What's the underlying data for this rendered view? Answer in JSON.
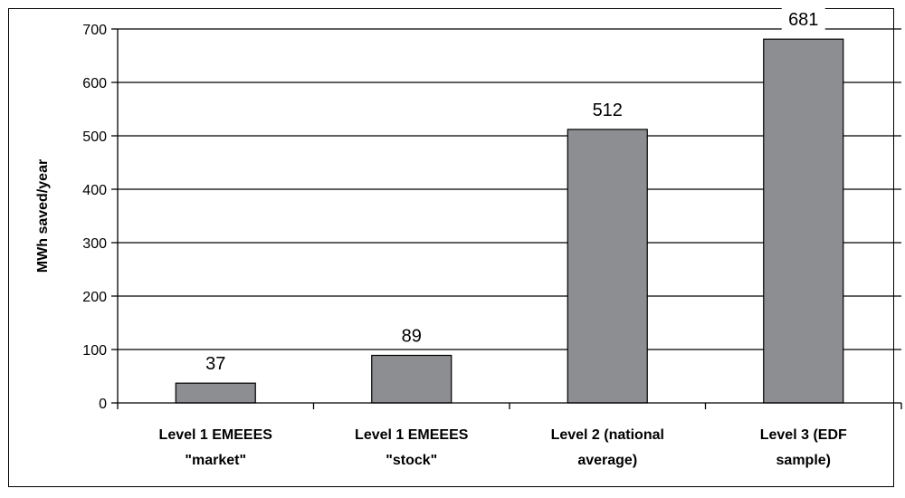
{
  "chart_data": {
    "type": "bar",
    "title": "",
    "xlabel": "",
    "ylabel": "MWh saved/year",
    "ylim": [
      0,
      700
    ],
    "yticks": [
      0,
      100,
      200,
      300,
      400,
      500,
      600,
      700
    ],
    "grid": true,
    "legend": "none",
    "categories": [
      [
        "Level 1 EMEEES",
        "\"market\""
      ],
      [
        "Level 1 EMEEES",
        "\"stock\""
      ],
      [
        "Level 2 (national",
        "average)"
      ],
      [
        "Level 3 (EDF",
        "sample)"
      ]
    ],
    "values": [
      37,
      89,
      512,
      681
    ],
    "colors": {
      "bar": "#8c8e92",
      "bar_edge": "#000000",
      "grid": "#000000",
      "label_bg": "#ffffff"
    }
  }
}
